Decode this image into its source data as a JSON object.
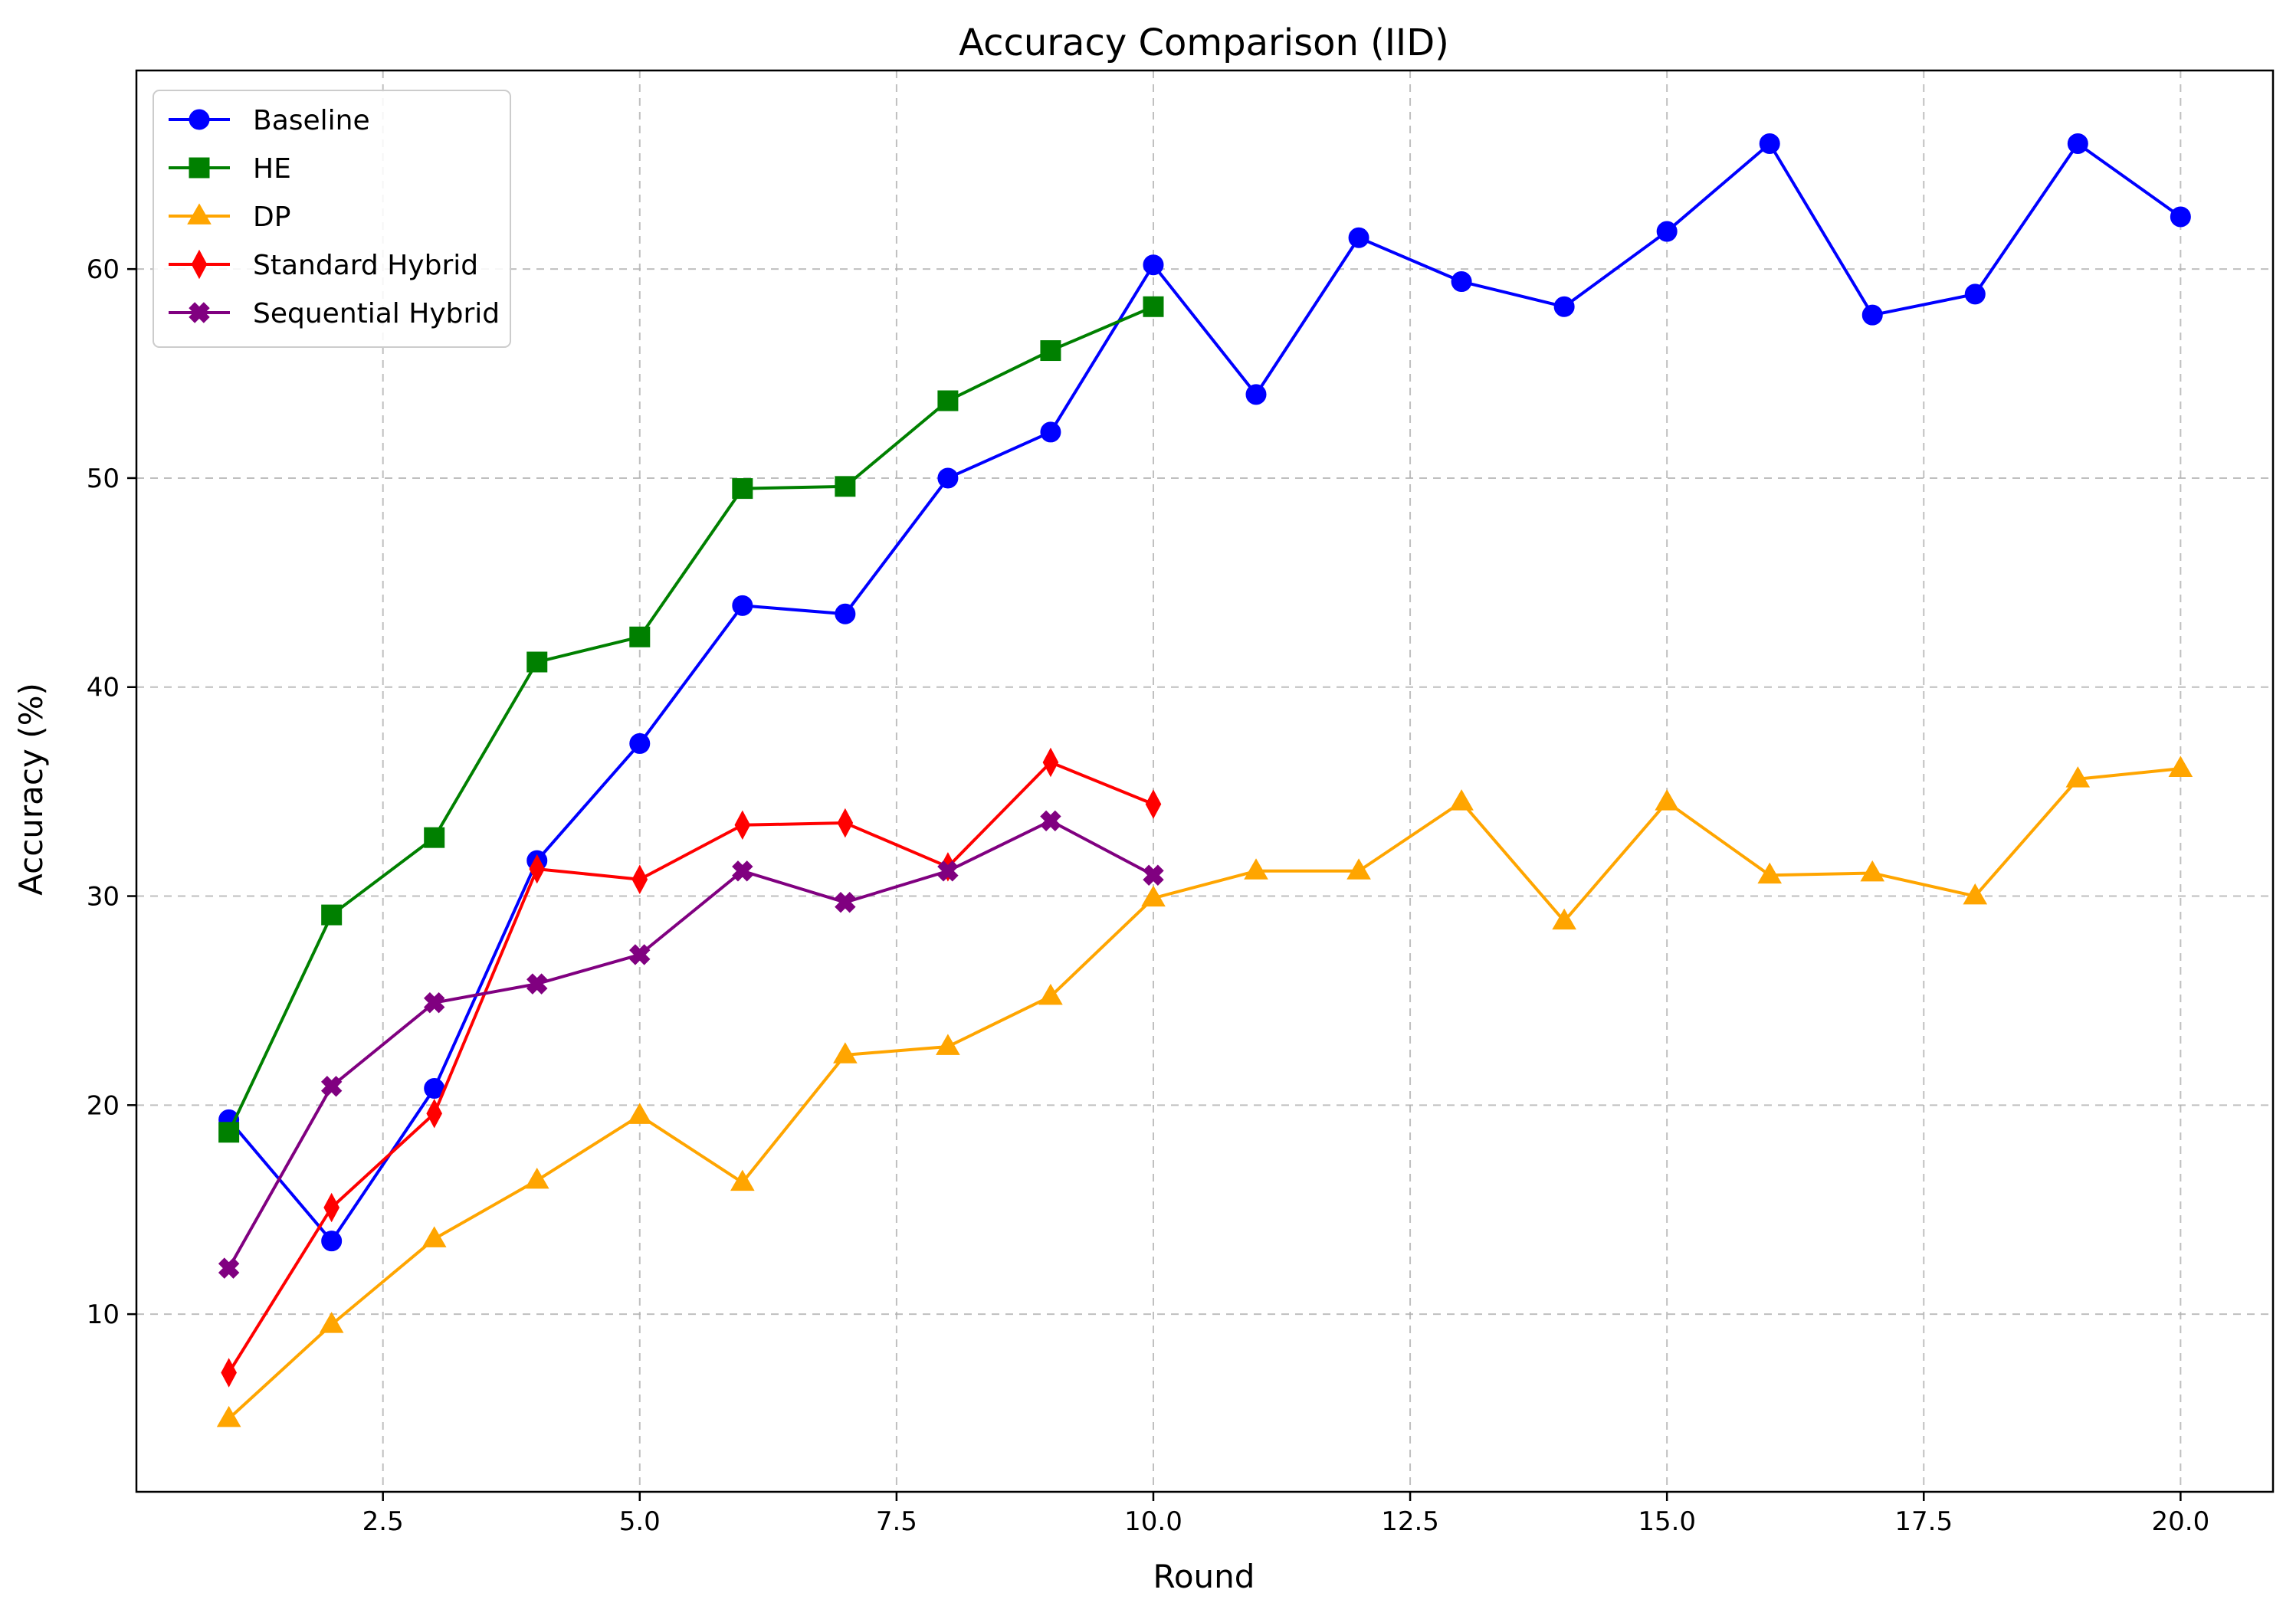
{
  "chart_data": {
    "type": "line",
    "title": "Accuracy Comparison (IID)",
    "xlabel": "Round",
    "ylabel": "Accuracy (%)",
    "xlim": [
      0.1,
      20.9
    ],
    "ylim": [
      1.5,
      69.5
    ],
    "xticks": [
      2.5,
      5.0,
      7.5,
      10.0,
      12.5,
      15.0,
      17.5,
      20.0
    ],
    "xtick_labels": [
      "2.5",
      "5.0",
      "7.5",
      "10.0",
      "12.5",
      "15.0",
      "17.5",
      "20.0"
    ],
    "yticks": [
      10,
      20,
      30,
      40,
      50,
      60
    ],
    "ytick_labels": [
      "10",
      "20",
      "30",
      "40",
      "50",
      "60"
    ],
    "grid": true,
    "legend_position": "top-left",
    "series": [
      {
        "name": "Baseline",
        "color": "#0000ff",
        "marker": "circle",
        "x": [
          1,
          2,
          3,
          4,
          5,
          6,
          7,
          8,
          9,
          10,
          11,
          12,
          13,
          14,
          15,
          16,
          17,
          18,
          19,
          20
        ],
        "y": [
          19.3,
          13.5,
          20.8,
          31.7,
          37.3,
          43.9,
          43.5,
          50.0,
          52.2,
          60.2,
          54.0,
          61.5,
          59.4,
          58.2,
          61.8,
          66.0,
          57.8,
          58.8,
          66.0,
          62.5
        ]
      },
      {
        "name": "HE",
        "color": "#008000",
        "marker": "square",
        "x": [
          1,
          2,
          3,
          4,
          5,
          6,
          7,
          8,
          9,
          10
        ],
        "y": [
          18.7,
          29.1,
          32.8,
          41.2,
          42.4,
          49.5,
          49.6,
          53.7,
          56.1,
          58.2
        ]
      },
      {
        "name": "DP",
        "color": "#ffa500",
        "marker": "triangle",
        "x": [
          1,
          2,
          3,
          4,
          5,
          6,
          7,
          8,
          9,
          10,
          11,
          12,
          13,
          14,
          15,
          16,
          17,
          18,
          19,
          20
        ],
        "y": [
          5.0,
          9.5,
          13.6,
          16.4,
          19.5,
          16.3,
          22.4,
          22.8,
          25.2,
          29.9,
          31.2,
          31.2,
          34.5,
          28.8,
          34.5,
          31.0,
          31.1,
          30.0,
          35.6,
          36.1
        ]
      },
      {
        "name": "Standard Hybrid",
        "color": "#ff0000",
        "marker": "thin-diamond",
        "x": [
          1,
          2,
          3,
          4,
          5,
          6,
          7,
          8,
          9,
          10
        ],
        "y": [
          7.2,
          15.1,
          19.6,
          31.3,
          30.8,
          33.4,
          33.5,
          31.4,
          36.4,
          34.4
        ]
      },
      {
        "name": "Sequential Hybrid",
        "color": "#800080",
        "marker": "x-filled",
        "x": [
          1,
          2,
          3,
          4,
          5,
          6,
          7,
          8,
          9,
          10
        ],
        "y": [
          12.2,
          20.9,
          24.9,
          25.8,
          27.2,
          31.2,
          29.7,
          31.2,
          33.6,
          31.0
        ]
      }
    ]
  }
}
